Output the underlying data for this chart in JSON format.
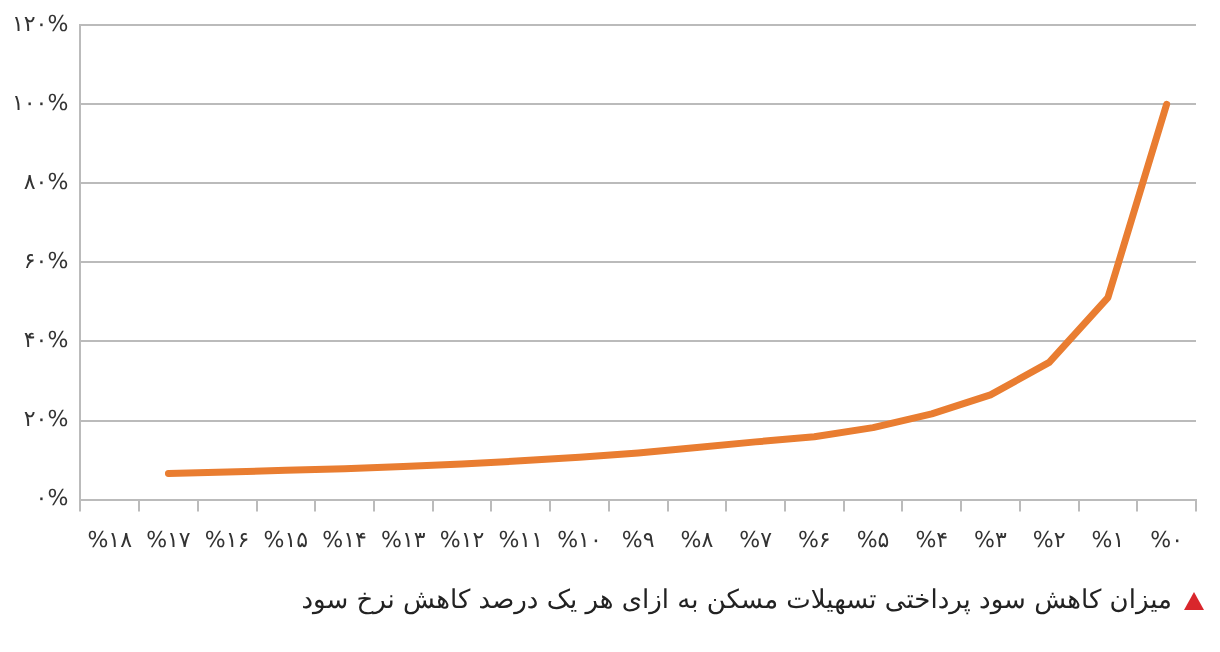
{
  "chart_data": {
    "type": "line",
    "categories": [
      "%۱۸",
      "%۱۷",
      "%۱۶",
      "%۱۵",
      "%۱۴",
      "%۱۳",
      "%۱۲",
      "%۱۱",
      "%۱۰",
      "%۹",
      "%۸",
      "%۷",
      "%۶",
      "%۵",
      "%۴",
      "%۳",
      "%۲",
      "%۱",
      "%۰"
    ],
    "series": [
      {
        "color": "#e97d31",
        "values": [
          null,
          6.6,
          7.0,
          7.4,
          7.8,
          8.4,
          9.0,
          9.8,
          10.7,
          11.8,
          13.2,
          14.6,
          15.9,
          18.2,
          21.7,
          26.5,
          34.7,
          51.1,
          100
        ]
      }
    ],
    "ylim": [
      0,
      120
    ],
    "yticks": [
      {
        "value": 0,
        "label": "۰%"
      },
      {
        "value": 20,
        "label": "۲۰%"
      },
      {
        "value": 40,
        "label": "۴۰%"
      },
      {
        "value": 60,
        "label": "۶۰%"
      },
      {
        "value": 80,
        "label": "۸۰%"
      },
      {
        "value": 100,
        "label": "۱۰۰%"
      },
      {
        "value": 120,
        "label": "۱۲۰%"
      }
    ],
    "grid": "y",
    "legend": false,
    "marker": "none",
    "line_style": "solid",
    "annotations": [
      "میزان کاهش سود پرداختی تسهیلات مسکن به ازای هر یک درصد کاهش نرخ سود"
    ]
  }
}
